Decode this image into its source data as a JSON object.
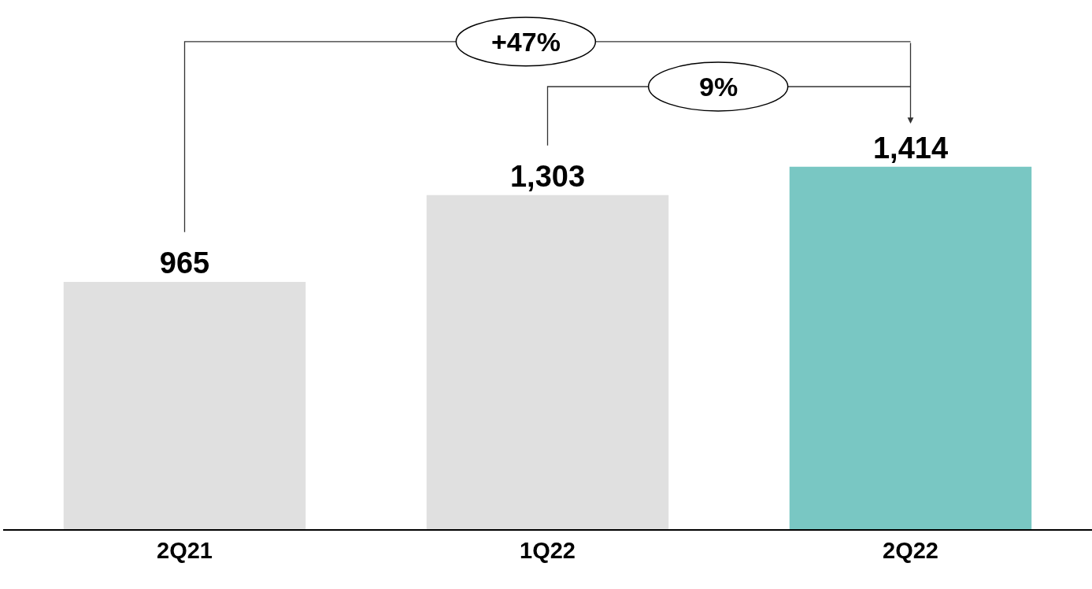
{
  "chart_data": {
    "type": "bar",
    "categories": [
      "2Q21",
      "1Q22",
      "2Q22"
    ],
    "values": [
      965,
      1303,
      1414
    ],
    "colors": [
      "#e0e0e0",
      "#e0e0e0",
      "#79c7c3"
    ],
    "value_labels": [
      "965",
      "1,303",
      "1,414"
    ],
    "annotations": [
      "+47%",
      "9%"
    ]
  }
}
